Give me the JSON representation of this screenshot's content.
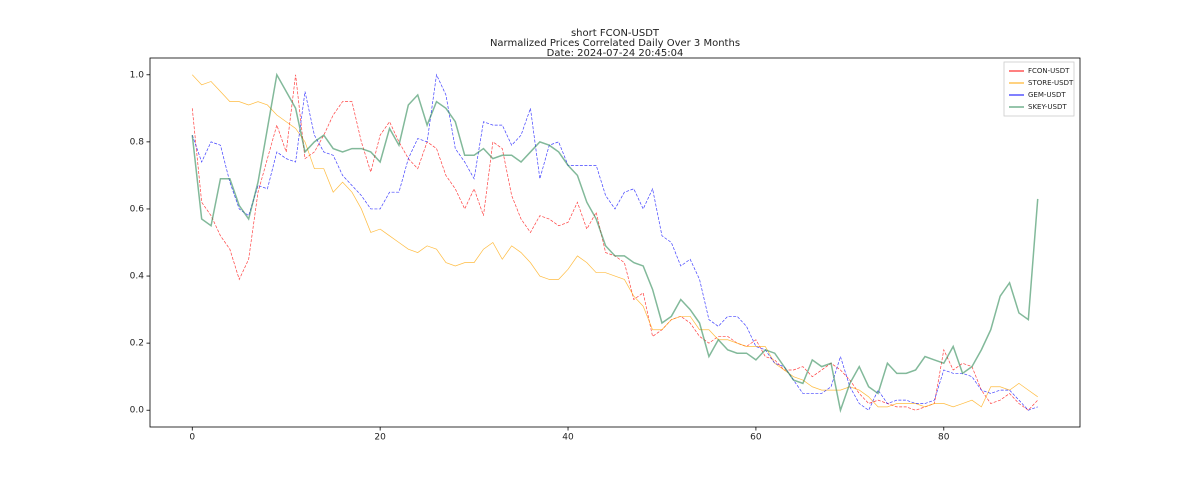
{
  "chart_data": {
    "type": "line",
    "title_lines": [
      "short FCON-USDT",
      "Narmalized Prices Correlated Daily Over 3 Months",
      "Date: 2024-07-24 20:45:04"
    ],
    "x": [
      0,
      1,
      2,
      3,
      4,
      5,
      6,
      7,
      8,
      9,
      10,
      11,
      12,
      13,
      14,
      15,
      16,
      17,
      18,
      19,
      20,
      21,
      22,
      23,
      24,
      25,
      26,
      27,
      28,
      29,
      30,
      31,
      32,
      33,
      34,
      35,
      36,
      37,
      38,
      39,
      40,
      41,
      42,
      43,
      44,
      45,
      46,
      47,
      48,
      49,
      50,
      51,
      52,
      53,
      54,
      55,
      56,
      57,
      58,
      59,
      60,
      61,
      62,
      63,
      64,
      65,
      66,
      67,
      68,
      69,
      70,
      71,
      72,
      73,
      74,
      75,
      76,
      77,
      78,
      79,
      80,
      81,
      82,
      83,
      84,
      85,
      86,
      87,
      88,
      89,
      90
    ],
    "series": [
      {
        "name": "FCON-USDT",
        "color": "#ff0000",
        "values": [
          0.9,
          0.62,
          0.58,
          0.52,
          0.48,
          0.39,
          0.45,
          0.65,
          0.75,
          0.85,
          0.77,
          1.0,
          0.75,
          0.77,
          0.82,
          0.88,
          0.92,
          0.92,
          0.8,
          0.71,
          0.82,
          0.86,
          0.8,
          0.75,
          0.72,
          0.8,
          0.78,
          0.7,
          0.66,
          0.6,
          0.66,
          0.58,
          0.8,
          0.78,
          0.64,
          0.57,
          0.53,
          0.58,
          0.57,
          0.55,
          0.56,
          0.62,
          0.54,
          0.59,
          0.47,
          0.46,
          0.44,
          0.33,
          0.35,
          0.22,
          0.24,
          0.27,
          0.28,
          0.26,
          0.22,
          0.2,
          0.22,
          0.22,
          0.2,
          0.19,
          0.21,
          0.16,
          0.15,
          0.12,
          0.12,
          0.13,
          0.1,
          0.12,
          0.14,
          0.12,
          0.09,
          0.05,
          0.02,
          0.03,
          0.02,
          0.01,
          0.01,
          0.0,
          0.01,
          0.02,
          0.18,
          0.12,
          0.14,
          0.13,
          0.06,
          0.02,
          0.03,
          0.05,
          0.02,
          0.0,
          0.03
        ]
      },
      {
        "name": "STORE-USDT",
        "color": "#ffa500",
        "values": [
          1.0,
          0.97,
          0.98,
          0.95,
          0.92,
          0.92,
          0.91,
          0.92,
          0.91,
          0.88,
          0.86,
          0.84,
          0.8,
          0.72,
          0.72,
          0.65,
          0.68,
          0.65,
          0.6,
          0.53,
          0.54,
          0.52,
          0.5,
          0.48,
          0.47,
          0.49,
          0.48,
          0.44,
          0.43,
          0.44,
          0.44,
          0.48,
          0.5,
          0.45,
          0.49,
          0.47,
          0.44,
          0.4,
          0.39,
          0.39,
          0.42,
          0.46,
          0.44,
          0.41,
          0.41,
          0.4,
          0.39,
          0.34,
          0.31,
          0.24,
          0.24,
          0.27,
          0.28,
          0.28,
          0.24,
          0.24,
          0.21,
          0.21,
          0.2,
          0.19,
          0.19,
          0.19,
          0.14,
          0.12,
          0.1,
          0.09,
          0.07,
          0.06,
          0.06,
          0.06,
          0.07,
          0.06,
          0.04,
          0.01,
          0.01,
          0.02,
          0.02,
          0.02,
          0.01,
          0.02,
          0.02,
          0.01,
          0.02,
          0.03,
          0.01,
          0.07,
          0.07,
          0.06,
          0.08,
          0.06,
          0.04
        ]
      },
      {
        "name": "GEM-USDT",
        "color": "#0000ff",
        "values": [
          0.82,
          0.74,
          0.8,
          0.79,
          0.68,
          0.6,
          0.58,
          0.67,
          0.66,
          0.77,
          0.75,
          0.74,
          0.95,
          0.82,
          0.77,
          0.76,
          0.7,
          0.67,
          0.64,
          0.6,
          0.6,
          0.65,
          0.65,
          0.75,
          0.81,
          0.8,
          1.0,
          0.94,
          0.78,
          0.74,
          0.69,
          0.86,
          0.85,
          0.85,
          0.79,
          0.82,
          0.9,
          0.69,
          0.79,
          0.8,
          0.73,
          0.73,
          0.73,
          0.73,
          0.64,
          0.6,
          0.65,
          0.66,
          0.6,
          0.66,
          0.52,
          0.5,
          0.43,
          0.45,
          0.39,
          0.27,
          0.25,
          0.28,
          0.28,
          0.25,
          0.19,
          0.18,
          0.14,
          0.13,
          0.09,
          0.05,
          0.05,
          0.05,
          0.07,
          0.16,
          0.07,
          0.02,
          0.0,
          0.06,
          0.02,
          0.03,
          0.03,
          0.02,
          0.02,
          0.03,
          0.12,
          0.11,
          0.11,
          0.1,
          0.06,
          0.05,
          0.06,
          0.06,
          0.03,
          0.0,
          0.01
        ]
      },
      {
        "name": "SKEY-USDT",
        "color": "#2e8b57",
        "values": [
          0.82,
          0.57,
          0.55,
          0.69,
          0.69,
          0.61,
          0.57,
          0.68,
          0.84,
          1.0,
          0.95,
          0.9,
          0.77,
          0.8,
          0.82,
          0.78,
          0.77,
          0.78,
          0.78,
          0.77,
          0.74,
          0.84,
          0.79,
          0.91,
          0.94,
          0.85,
          0.92,
          0.9,
          0.86,
          0.76,
          0.76,
          0.78,
          0.75,
          0.76,
          0.76,
          0.74,
          0.77,
          0.8,
          0.79,
          0.77,
          0.73,
          0.7,
          0.62,
          0.57,
          0.49,
          0.46,
          0.46,
          0.44,
          0.43,
          0.36,
          0.26,
          0.28,
          0.33,
          0.3,
          0.26,
          0.16,
          0.21,
          0.18,
          0.17,
          0.17,
          0.15,
          0.18,
          0.17,
          0.13,
          0.09,
          0.08,
          0.15,
          0.13,
          0.14,
          0.0,
          0.08,
          0.13,
          0.07,
          0.05,
          0.14,
          0.11,
          0.11,
          0.12,
          0.16,
          0.15,
          0.14,
          0.19,
          0.11,
          0.13,
          0.18,
          0.24,
          0.34,
          0.38,
          0.29,
          0.27,
          0.63
        ]
      }
    ],
    "xlim": [
      -4.5,
      94.5
    ],
    "xticks": [
      0,
      20,
      40,
      60,
      80
    ],
    "ylim": [
      -0.05,
      1.05
    ],
    "yticks": [
      {
        "value": 0.0,
        "label": "0.0"
      },
      0.2,
      0.4,
      0.6,
      0.8,
      {
        "value": 1.0,
        "label": "1.0"
      }
    ],
    "legend": "upper right"
  }
}
